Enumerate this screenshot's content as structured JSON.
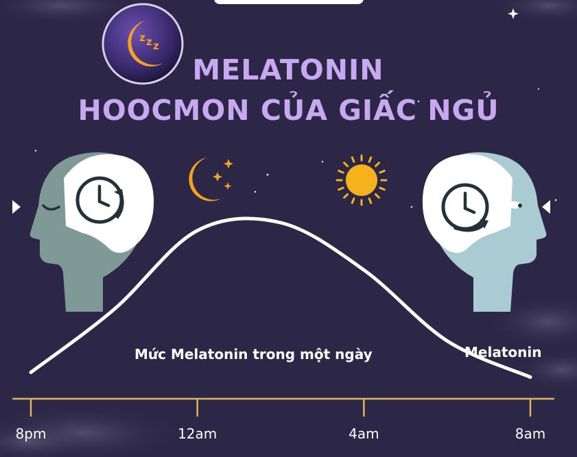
{
  "title": {
    "line1": "MELATONIN",
    "line2": "HOOCMON CỦA GIẤC NGỦ"
  },
  "icons": {
    "badge": "moon-zzz-icon",
    "night": "crescent-moon-stars-icon",
    "day": "sun-icon",
    "left_head": "sleeping-head-clock-icon",
    "right_head": "awake-head-clock-icon",
    "left_arrow": "triangle-right-icon",
    "right_arrow": "triangle-left-icon"
  },
  "colors": {
    "background": "#2c2747",
    "title": "#c9a8f2",
    "axis": "#e0b45a",
    "curve": "#ffffff",
    "left_head": "#7f9996",
    "right_head": "#a9cbd1",
    "sun": "#f6b21b",
    "moon": "#f3a11f"
  },
  "chart_data": {
    "type": "line",
    "caption": "Mức Melatonin trong một ngày",
    "x_ticks": [
      "8pm",
      "12am",
      "4am",
      "8am"
    ],
    "series": [
      {
        "name": "Melatonin",
        "x": [
          "8pm",
          "10pm",
          "12am",
          "2am",
          "4am",
          "6am",
          "8am"
        ],
        "y": [
          0.05,
          0.45,
          0.95,
          1.0,
          0.7,
          0.25,
          0.02
        ]
      }
    ],
    "ylim": [
      0,
      1
    ],
    "grid": false,
    "y_axis_shown": false
  }
}
